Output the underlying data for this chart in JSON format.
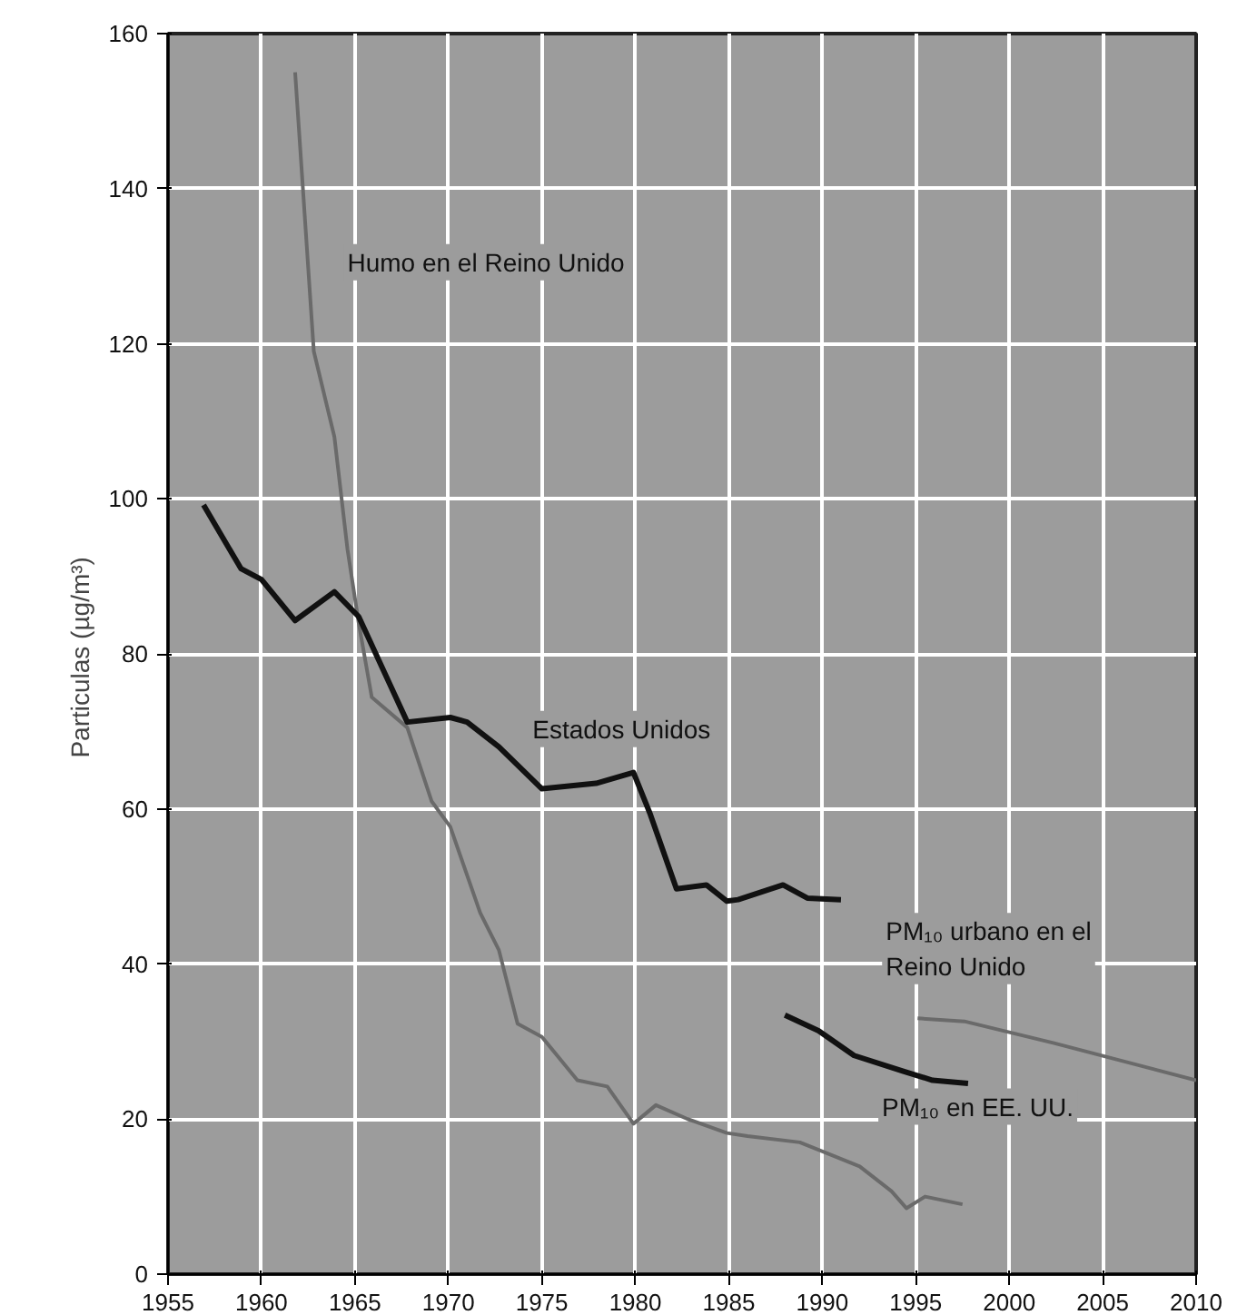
{
  "chart_data": {
    "type": "line",
    "ylabel": "Particulas  (µg/m³)",
    "xlim": [
      1955,
      2010
    ],
    "xticks": [
      1955,
      1960,
      1965,
      1970,
      1975,
      1980,
      1985,
      1990,
      1995,
      2000,
      2005,
      2010
    ],
    "ylim": [
      0,
      160
    ],
    "yticks": [
      0,
      20,
      40,
      60,
      80,
      100,
      120,
      140,
      160
    ],
    "grid": true,
    "legend": false,
    "marker": "none",
    "line_style": "solid",
    "series": [
      {
        "name": "Humo en el Reino Unido",
        "color": "#6a6a6a",
        "x": [
          1961.8,
          1962.8,
          1963.9,
          1964.6,
          1965.2,
          1965.9,
          1967.8,
          1969.1,
          1970.1,
          1971.7,
          1972.7,
          1973.7,
          1975,
          1976.9,
          1978.5,
          1979.9,
          1981.1,
          1982.8,
          1984.9,
          1986,
          1988.8,
          1992,
          1993.7,
          1994.5,
          1995.5,
          1997.5
        ],
        "values": [
          155,
          119,
          108,
          93.5,
          84,
          74.4,
          70.5,
          61,
          57.7,
          46.6,
          41.8,
          32.3,
          30.6,
          25,
          24.2,
          19.4,
          21.8,
          20,
          18.2,
          17.8,
          17,
          13.9,
          10.7,
          8.5,
          10,
          9
        ]
      },
      {
        "name": "Estados Unidos",
        "color": "#111111",
        "x": [
          1956.9,
          1958.9,
          1960,
          1961.8,
          1963.9,
          1965.2,
          1967.8,
          1970.1,
          1971,
          1972.7,
          1975,
          1977.9,
          1979.9,
          1980.8,
          1982.2,
          1983.8,
          1984.9,
          1985.5,
          1987.9,
          1989.2,
          1991
        ],
        "values": [
          99.2,
          91,
          89.6,
          84.3,
          88,
          84.8,
          71.2,
          71.8,
          71.2,
          68,
          62.6,
          63.3,
          64.7,
          59.3,
          49.7,
          50.2,
          48.1,
          48.3,
          50.2,
          48.5,
          48.3
        ]
      },
      {
        "name": "PM₁₀ en EE. UU.",
        "color": "#111111",
        "x": [
          1988,
          1989.8,
          1991.7,
          1994.3,
          1995.9,
          1997.8
        ],
        "values": [
          33.4,
          31.4,
          28.2,
          26.2,
          25,
          24.6
        ]
      },
      {
        "name": "PM₁₀ urbano en el\nReino Unido",
        "color": "#6a6a6a",
        "x": [
          1995.1,
          1997.6,
          2002.4,
          2010
        ],
        "values": [
          33,
          32.6,
          29.8,
          25
        ]
      }
    ]
  }
}
